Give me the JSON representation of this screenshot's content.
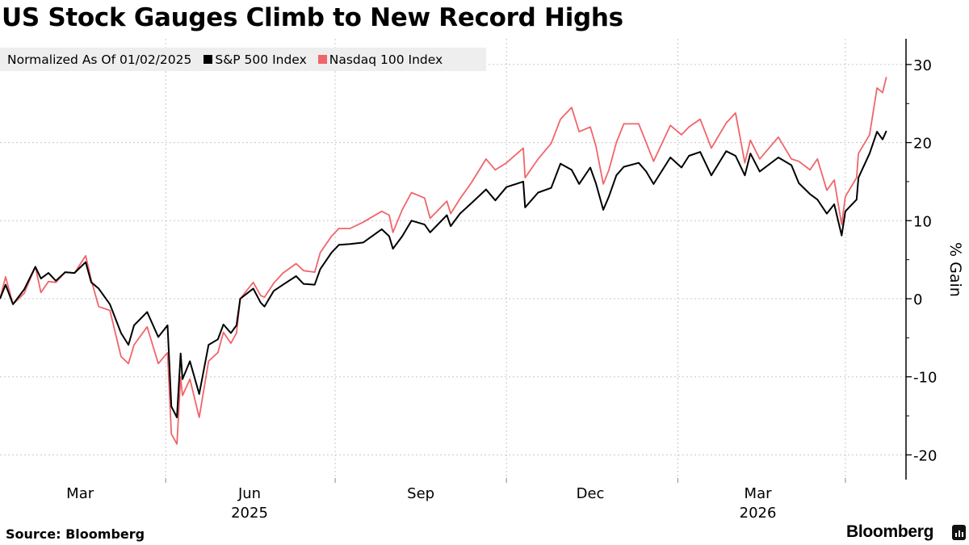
{
  "chart_data": {
    "type": "line",
    "title": "US Stock Gauges Climb to New Record Highs",
    "subtitle": "Normalized As Of 01/02/2025",
    "ylabel": "% Gain",
    "xlabel": "",
    "ylim": [
      -25,
      33
    ],
    "yticks": [
      -20,
      -10,
      0,
      10,
      20,
      30
    ],
    "ytick_labels": [
      "-20",
      "-10",
      "0",
      "10",
      "20",
      "30"
    ],
    "x_month_labels": [
      {
        "label": "Mar",
        "date": "2025-02-14"
      },
      {
        "label": "Jun",
        "date": "2025-05-16"
      },
      {
        "label": "Sep",
        "date": "2025-08-16"
      },
      {
        "label": "Dec",
        "date": "2025-11-15"
      },
      {
        "label": "Mar",
        "date": "2026-02-13"
      }
    ],
    "x_year_labels": [
      {
        "label": "2025",
        "date": "2025-05-16"
      },
      {
        "label": "2026",
        "date": "2026-02-13"
      }
    ],
    "x_gridlines": [
      "2025-04-01",
      "2025-07-01",
      "2025-10-01",
      "2026-01-01",
      "2026-04-01"
    ],
    "grid": true,
    "legend_position": "top-left",
    "dates": [
      "2025-01-02",
      "2025-01-05",
      "2025-01-09",
      "2025-01-15",
      "2025-01-21",
      "2025-01-24",
      "2025-01-28",
      "2025-02-01",
      "2025-02-06",
      "2025-02-11",
      "2025-02-17",
      "2025-02-20",
      "2025-02-24",
      "2025-03-02",
      "2025-03-08",
      "2025-03-12",
      "2025-03-15",
      "2025-03-22",
      "2025-03-28",
      "2025-04-02",
      "2025-04-04",
      "2025-04-07",
      "2025-04-09",
      "2025-04-10",
      "2025-04-14",
      "2025-04-19",
      "2025-04-24",
      "2025-04-29",
      "2025-05-02",
      "2025-05-06",
      "2025-05-09",
      "2025-05-11",
      "2025-05-18",
      "2025-05-22",
      "2025-05-24",
      "2025-05-29",
      "2025-06-03",
      "2025-06-10",
      "2025-06-14",
      "2025-06-20",
      "2025-06-23",
      "2025-06-29",
      "2025-07-03",
      "2025-07-09",
      "2025-07-16",
      "2025-07-26",
      "2025-07-30",
      "2025-08-01",
      "2025-08-06",
      "2025-08-11",
      "2025-08-18",
      "2025-08-21",
      "2025-08-30",
      "2025-09-01",
      "2025-09-06",
      "2025-09-12",
      "2025-09-20",
      "2025-09-25",
      "2025-10-01",
      "2025-10-10",
      "2025-10-11",
      "2025-10-18",
      "2025-10-25",
      "2025-10-30",
      "2025-11-05",
      "2025-11-09",
      "2025-11-15",
      "2025-11-18",
      "2025-11-22",
      "2025-11-25",
      "2025-11-29",
      "2025-12-03",
      "2025-12-11",
      "2025-12-15",
      "2025-12-19",
      "2025-12-28",
      "2026-01-03",
      "2026-01-07",
      "2026-01-13",
      "2026-01-19",
      "2026-01-27",
      "2026-02-01",
      "2026-02-06",
      "2026-02-09",
      "2026-02-14",
      "2026-02-24",
      "2026-03-03",
      "2026-03-07",
      "2026-03-13",
      "2026-03-17",
      "2026-03-22",
      "2026-03-26",
      "2026-03-30",
      "2026-04-01",
      "2026-04-07",
      "2026-04-08",
      "2026-04-14",
      "2026-04-18",
      "2026-04-21",
      "2026-04-23"
    ],
    "series": [
      {
        "name": "S&P 500 Index",
        "color": "#000000",
        "values": [
          0,
          1.8,
          -0.7,
          1.2,
          4.1,
          2.6,
          3.3,
          2.3,
          3.4,
          3.3,
          4.7,
          2.1,
          1.3,
          -0.7,
          -4.4,
          -5.9,
          -3.4,
          -1.7,
          -4.9,
          -3.4,
          -13.8,
          -15.2,
          -7.0,
          -10.3,
          -8.0,
          -12.2,
          -5.9,
          -5.2,
          -3.3,
          -4.4,
          -3.4,
          0,
          1.3,
          -0.5,
          -1.0,
          1.0,
          1.8,
          2.9,
          1.9,
          1.8,
          3.8,
          5.9,
          6.9,
          7.0,
          7.2,
          8.9,
          8.0,
          6.4,
          8.0,
          10.0,
          9.5,
          8.5,
          10.7,
          9.3,
          10.9,
          12.2,
          14.0,
          12.6,
          14.3,
          15.0,
          11.7,
          13.6,
          14.2,
          17.3,
          16.5,
          14.7,
          16.8,
          14.8,
          11.4,
          13.1,
          15.8,
          16.9,
          17.4,
          16.3,
          14.7,
          18.1,
          16.8,
          18.3,
          18.8,
          15.8,
          18.9,
          18.3,
          15.8,
          18.6,
          16.3,
          18.1,
          17.1,
          14.8,
          13.4,
          12.7,
          10.9,
          12.1,
          8.1,
          11.2,
          12.7,
          15.5,
          18.6,
          21.4,
          20.4,
          21.5
        ]
      },
      {
        "name": "Nasdaq 100 Index",
        "color": "#f0656a",
        "values": [
          0,
          2.8,
          -0.7,
          0.7,
          4.1,
          0.8,
          2.2,
          2.1,
          3.4,
          3.3,
          5.5,
          2.4,
          -1.0,
          -1.5,
          -7.4,
          -8.3,
          -5.9,
          -3.6,
          -8.3,
          -6.9,
          -17.3,
          -18.6,
          -10.0,
          -12.4,
          -10.3,
          -15.2,
          -8.0,
          -6.9,
          -4.3,
          -5.7,
          -4.4,
          0,
          2.1,
          0.4,
          0.2,
          2.0,
          3.3,
          4.5,
          3.6,
          3.4,
          5.9,
          8.0,
          9.0,
          9.0,
          9.8,
          11.2,
          10.7,
          8.5,
          11.4,
          13.6,
          12.9,
          10.3,
          12.5,
          10.9,
          12.8,
          14.8,
          17.9,
          16.5,
          17.4,
          19.3,
          15.5,
          17.9,
          19.9,
          23.0,
          24.5,
          21.4,
          22.0,
          19.6,
          14.7,
          16.5,
          20.0,
          22.4,
          22.4,
          20.0,
          17.6,
          22.2,
          21.0,
          22.0,
          23.0,
          19.3,
          22.5,
          23.8,
          17.4,
          20.3,
          17.9,
          20.7,
          17.9,
          17.6,
          16.5,
          17.9,
          13.9,
          15.2,
          9.5,
          13.1,
          15.5,
          18.6,
          21.0,
          27.0,
          26.4,
          28.4
        ]
      }
    ]
  },
  "footer": {
    "source": "Source: Bloomberg",
    "brand": "Bloomberg"
  }
}
